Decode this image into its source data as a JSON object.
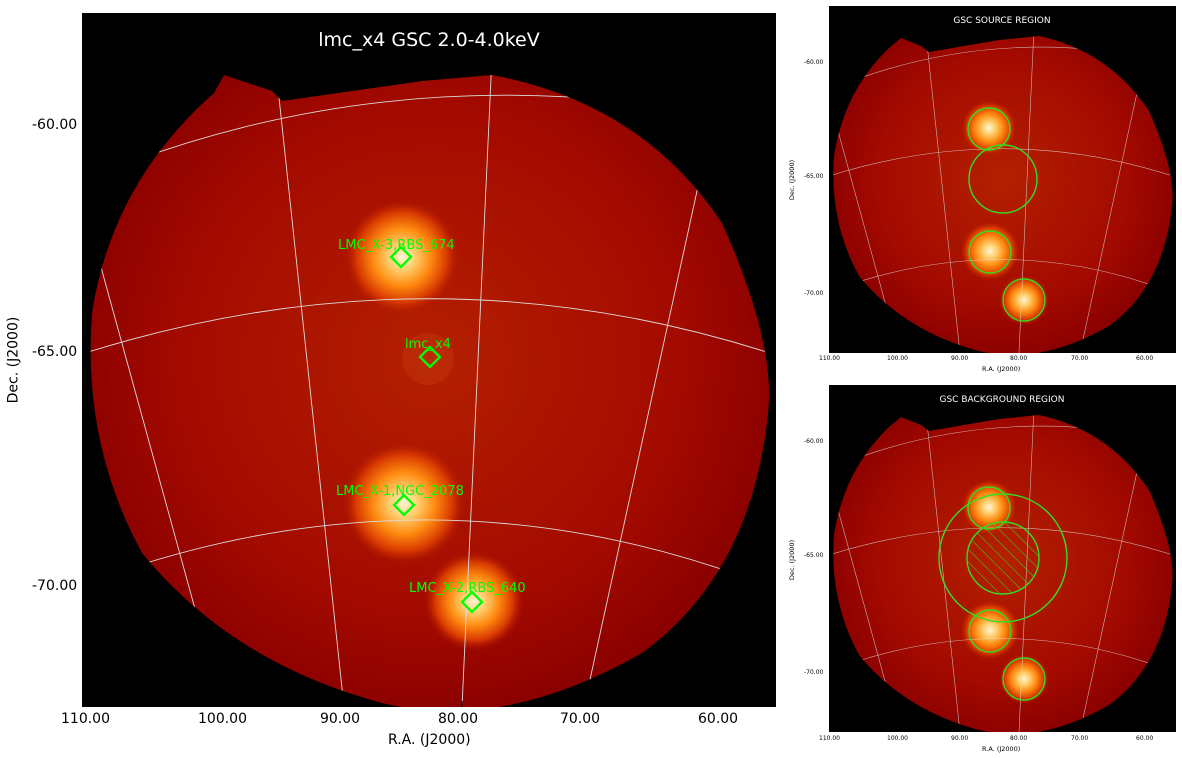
{
  "main": {
    "title": "lmc_x4 GSC 2.0-4.0keV",
    "xlabel": "R.A. (J2000)",
    "ylabel": "Dec. (J2000)",
    "ra_ticks": [
      "110.00",
      "100.00",
      "90.00",
      "80.00",
      "70.00",
      "60.00"
    ],
    "dec_ticks": [
      "-60.00",
      "-65.00",
      "-70.00"
    ],
    "sources": [
      {
        "label": "LMC_X-3,RBS_674"
      },
      {
        "label": "lmc_x4"
      },
      {
        "label": "LMC_X-1,NGC_2078"
      },
      {
        "label": "LMC_X-2,RBS_640"
      }
    ]
  },
  "source_panel": {
    "title": "GSC SOURCE REGION",
    "xlabel": "R.A. (J2000)",
    "ylabel": "Dec. (J2000)",
    "ra_ticks": [
      "110.00",
      "100.00",
      "90.00",
      "80.00",
      "70.00",
      "60.00"
    ],
    "dec_ticks": [
      "-60.00",
      "-65.00",
      "-70.00"
    ]
  },
  "background_panel": {
    "title": "GSC BACKGROUND REGION",
    "xlabel": "R.A. (J2000)",
    "ylabel": "Dec. (J2000)",
    "ra_ticks": [
      "110.00",
      "100.00",
      "90.00",
      "80.00",
      "70.00",
      "60.00"
    ],
    "dec_ticks": [
      "-60.00",
      "-65.00",
      "-70.00"
    ]
  },
  "colors": {
    "sky_dark": "#8f0000",
    "sky_mid": "#b81800",
    "marker": "#00ff00",
    "region": "#33dd22",
    "grid": "#d8d8d8",
    "background": "#000000"
  }
}
